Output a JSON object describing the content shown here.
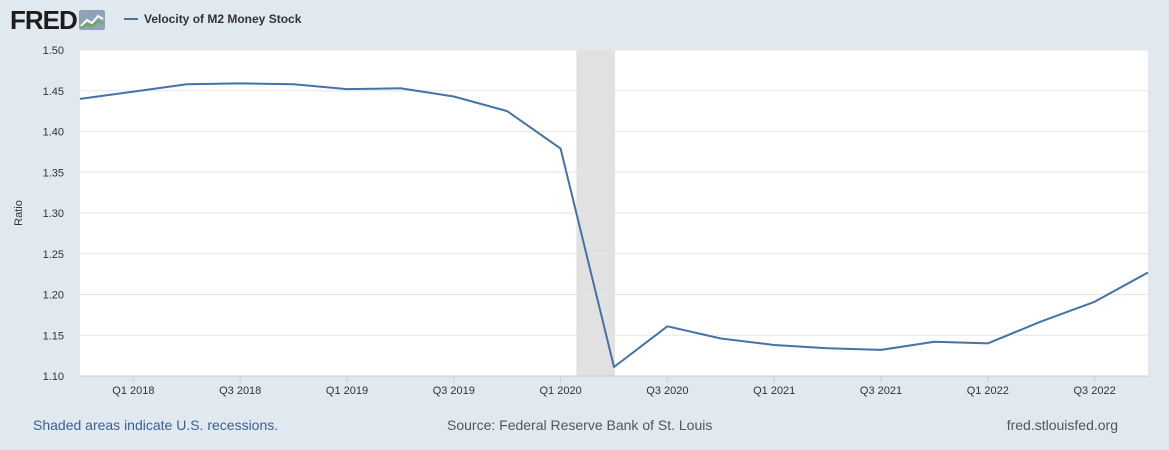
{
  "logo": {
    "text": "FRED"
  },
  "legend": {
    "label": "Velocity of M2 Money Stock"
  },
  "footer": {
    "recession_note": "Shaded areas indicate U.S. recessions.",
    "source": "Source: Federal Reserve Bank of St. Louis",
    "site": "fred.stlouisfed.org"
  },
  "colors": {
    "line": "#4572a7",
    "recession": "#e1e1e1",
    "plot_bg": "#ffffff",
    "page_bg": "#e1e9f0"
  },
  "chart_data": {
    "type": "line",
    "ylabel": "Ratio",
    "ylim": [
      1.1,
      1.5
    ],
    "yticks": [
      "1.10",
      "1.15",
      "1.20",
      "1.25",
      "1.30",
      "1.35",
      "1.40",
      "1.45",
      "1.50"
    ],
    "xticks": [
      "Q1 2018",
      "Q3 2018",
      "Q1 2019",
      "Q3 2019",
      "Q1 2020",
      "Q3 2020",
      "Q1 2021",
      "Q3 2021",
      "Q1 2022",
      "Q3 2022"
    ],
    "grid": true,
    "recession": {
      "start": "2020-02",
      "end": "2020-04"
    },
    "series": [
      {
        "name": "Velocity of M2 Money Stock",
        "x": [
          "2017-10",
          "2018-01",
          "2018-04",
          "2018-07",
          "2018-10",
          "2019-01",
          "2019-04",
          "2019-07",
          "2019-10",
          "2020-01",
          "2020-04",
          "2020-07",
          "2020-10",
          "2021-01",
          "2021-04",
          "2021-07",
          "2021-10",
          "2022-01",
          "2022-04",
          "2022-07",
          "2022-10"
        ],
        "values": [
          1.44,
          1.449,
          1.458,
          1.459,
          1.458,
          1.452,
          1.453,
          1.443,
          1.425,
          1.379,
          1.111,
          1.161,
          1.146,
          1.138,
          1.134,
          1.132,
          1.142,
          1.14,
          1.167,
          1.191,
          1.227
        ]
      }
    ]
  }
}
